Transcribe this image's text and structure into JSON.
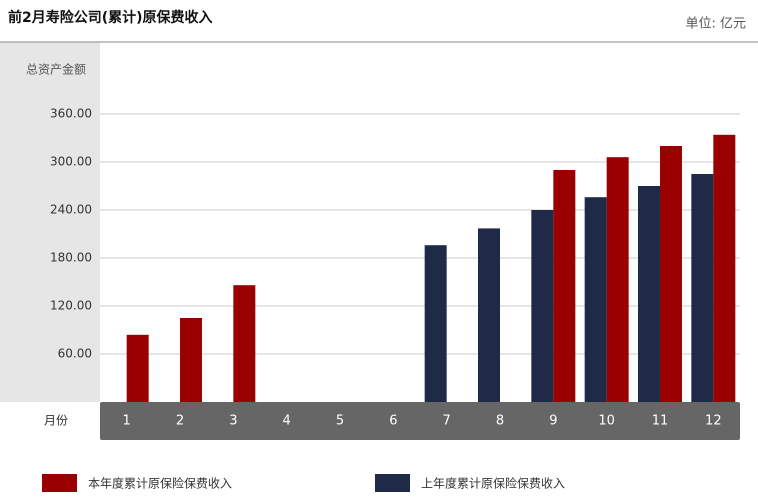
{
  "chart_data": {
    "type": "bar",
    "title": "前2月寿险公司(累计)原保费收入",
    "unit": "单位: 亿元",
    "y_axis_label": "总资产金额",
    "x_axis_label": "月份",
    "categories": [
      "1",
      "2",
      "3",
      "4",
      "5",
      "6",
      "7",
      "8",
      "9",
      "10",
      "11",
      "12"
    ],
    "series": [
      {
        "name": "本年度累计原保险保费收入",
        "color": "#9b0000",
        "values": [
          84,
          105,
          146,
          null,
          null,
          null,
          null,
          null,
          290,
          306,
          320,
          334
        ]
      },
      {
        "name": "上年度累计原保险保费收入",
        "color": "#1f2a48",
        "values": [
          null,
          null,
          null,
          null,
          null,
          null,
          196,
          217,
          240,
          256,
          270,
          285
        ]
      }
    ],
    "ylim": [
      0,
      450
    ],
    "yticks": [
      {
        "value": 60,
        "label": "60.00"
      },
      {
        "value": 120,
        "label": "120.00"
      },
      {
        "value": 180,
        "label": "180.00"
      },
      {
        "value": 240,
        "label": "240.00"
      },
      {
        "value": 300,
        "label": "300.00"
      },
      {
        "value": 360,
        "label": "360.00"
      }
    ],
    "grid": true
  }
}
